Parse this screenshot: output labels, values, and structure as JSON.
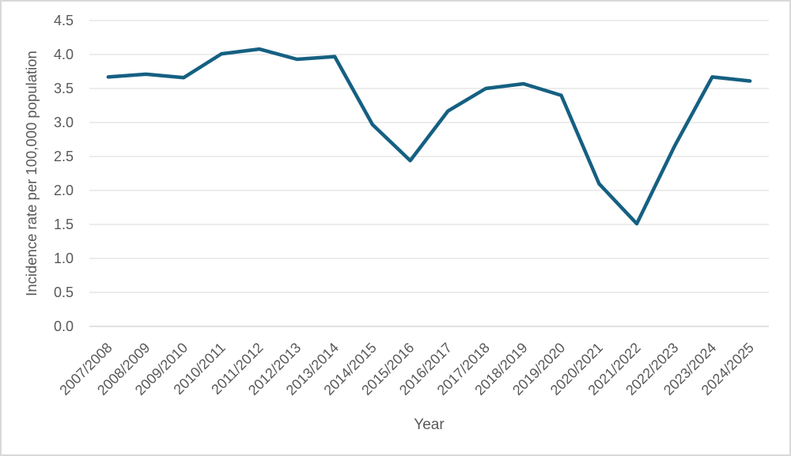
{
  "chart_data": {
    "type": "line",
    "title": "",
    "xlabel": "Year",
    "ylabel": "Incidence rate per 100,000 population",
    "categories": [
      "2007/2008",
      "2008/2009",
      "2009/2010",
      "2010/2011",
      "2011/2012",
      "2012/2013",
      "2013/2014",
      "2014/2015",
      "2015/2016",
      "2016/2017",
      "2017/2018",
      "2018/2019",
      "2019/2020",
      "2020/2021",
      "2021/2022",
      "2022/2023",
      "2023/2024",
      "2024/2025"
    ],
    "values": [
      3.67,
      3.71,
      3.66,
      4.01,
      4.08,
      3.93,
      3.97,
      2.97,
      2.44,
      3.17,
      3.5,
      3.57,
      3.4,
      2.1,
      1.51,
      2.65,
      3.67,
      3.61
    ],
    "ylim": [
      0,
      4.5
    ],
    "ytick_step": 0.5,
    "ytick_decimals": 1,
    "ytick_labels": [
      "0.0",
      "0.5",
      "1.0",
      "1.5",
      "2.0",
      "2.5",
      "3.0",
      "3.5",
      "4.0",
      "4.5"
    ],
    "grid": "horizontal",
    "legend": "none",
    "colors": {
      "line": "#156082",
      "gridline": "#d9d9d9",
      "axis_line": "#c6c6c6",
      "text": "#595959",
      "background": "#ffffff",
      "frame_border": "#d8d8d8"
    }
  }
}
